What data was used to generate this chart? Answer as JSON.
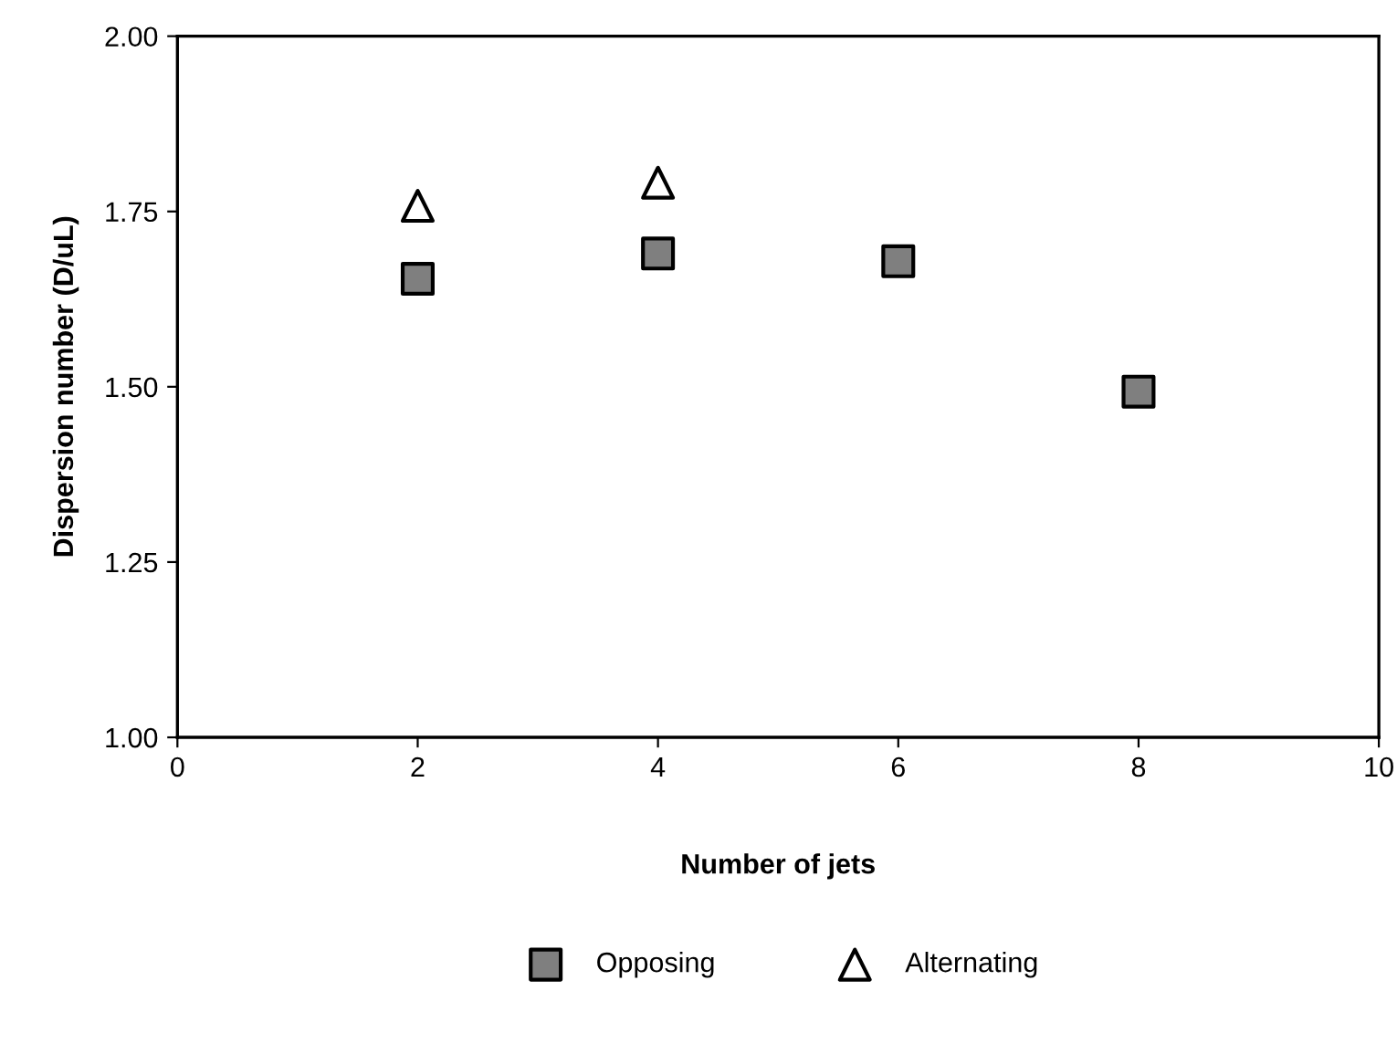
{
  "chart_data": {
    "type": "scatter",
    "xlabel": "Number of jets",
    "ylabel": "Dispersion number (D/uL)",
    "x": [
      2,
      4,
      6,
      8
    ],
    "series": [
      {
        "name": "Opposing",
        "color": "#7f7f7f",
        "marker": "square",
        "values": [
          1.654,
          1.69,
          1.679,
          1.493
        ]
      },
      {
        "name": "Alternating",
        "color": "#ffffff",
        "marker": "triangle",
        "values": [
          1.758,
          1.791,
          null,
          null
        ]
      }
    ],
    "xlim": [
      0,
      10
    ],
    "xticks": [
      0,
      2,
      4,
      6,
      8,
      10
    ],
    "ylim": [
      1.0,
      2.0
    ],
    "yticks": [
      {
        "value": 1.0,
        "label": "1.00"
      },
      {
        "value": 1.25,
        "label": "1.25"
      },
      {
        "value": 1.5,
        "label": "1.50"
      },
      {
        "value": 1.75,
        "label": "1.75"
      },
      {
        "value": 2.0,
        "label": "2.00"
      }
    ],
    "grid": false,
    "legend": "bottom"
  }
}
